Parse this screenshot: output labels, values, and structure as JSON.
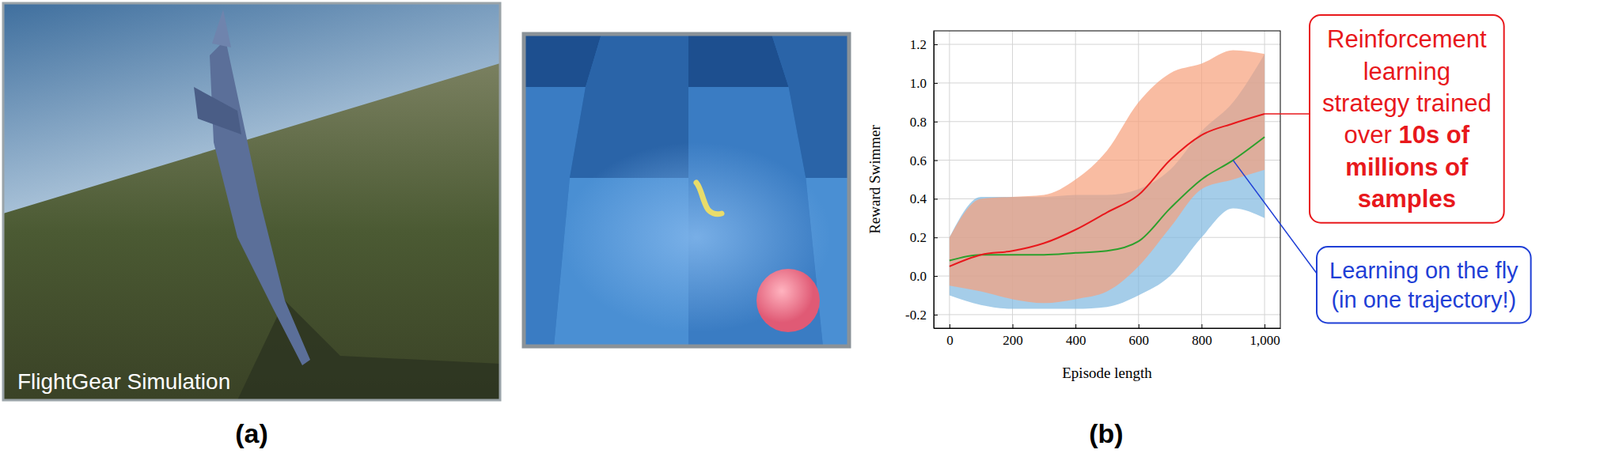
{
  "chart_data": {
    "type": "line",
    "x_label": "Episode length",
    "y_label": "Reward Swimmer",
    "x": [
      0,
      100,
      200,
      300,
      400,
      500,
      600,
      700,
      800,
      900,
      1000
    ],
    "series": [
      {
        "type": "area",
        "color": "#7fb8e0",
        "lower": [
          -0.1,
          -0.15,
          -0.17,
          -0.17,
          -0.17,
          -0.16,
          -0.1,
          0.0,
          0.2,
          0.35,
          0.3
        ],
        "upper": [
          0.2,
          0.41,
          0.41,
          0.41,
          0.42,
          0.42,
          0.45,
          0.55,
          0.75,
          0.9,
          1.15
        ]
      },
      {
        "type": "area",
        "color": "#f7a07a",
        "lower": [
          -0.05,
          -0.08,
          -0.12,
          -0.14,
          -0.12,
          -0.08,
          0.05,
          0.25,
          0.45,
          0.5,
          0.55
        ],
        "upper": [
          0.2,
          0.4,
          0.41,
          0.42,
          0.5,
          0.65,
          0.9,
          1.05,
          1.1,
          1.17,
          1.15
        ]
      },
      {
        "type": "line",
        "color": "#2ca02c",
        "values": [
          0.08,
          0.11,
          0.11,
          0.11,
          0.12,
          0.13,
          0.18,
          0.35,
          0.5,
          0.6,
          0.72
        ]
      },
      {
        "type": "line",
        "color": "#e8181c",
        "values": [
          0.05,
          0.11,
          0.13,
          0.17,
          0.24,
          0.33,
          0.42,
          0.6,
          0.73,
          0.79,
          0.84
        ]
      }
    ],
    "xlim": [
      -50,
      1050
    ],
    "ylim": [
      -0.27,
      1.27
    ],
    "xticks": [
      0,
      200,
      400,
      600,
      800,
      {
        "value": 1000,
        "label": "1,000"
      }
    ],
    "yticks": [
      -0.2,
      {
        "value": 0,
        "label": "0.0"
      },
      0.2,
      0.4,
      0.6,
      0.8,
      {
        "value": 1,
        "label": "1.0"
      },
      1.2
    ],
    "grid": true,
    "annotations": [
      {
        "color": "#e8181c",
        "series": 3,
        "x": 1000,
        "lines": [
          [
            {
              "text": "Reinforcement"
            }
          ],
          [
            {
              "text": "learning"
            }
          ],
          [
            {
              "text": "strategy trained"
            }
          ],
          [
            {
              "text": "over "
            },
            {
              "text": "10s of",
              "bold": true
            }
          ],
          [
            {
              "text": "millions of",
              "bold": true
            }
          ],
          [
            {
              "text": "samples",
              "bold": true
            }
          ]
        ]
      },
      {
        "color": "#1f3fd6",
        "series": 2,
        "x": 900,
        "lines": [
          [
            {
              "text": "Learning on the fly"
            }
          ],
          [
            {
              "text": "(in one trajectory!)"
            }
          ]
        ]
      }
    ]
  },
  "figure": {
    "panel_labels": [
      "(a)",
      "(b)"
    ],
    "image_caption": "FlightGear Simulation"
  }
}
